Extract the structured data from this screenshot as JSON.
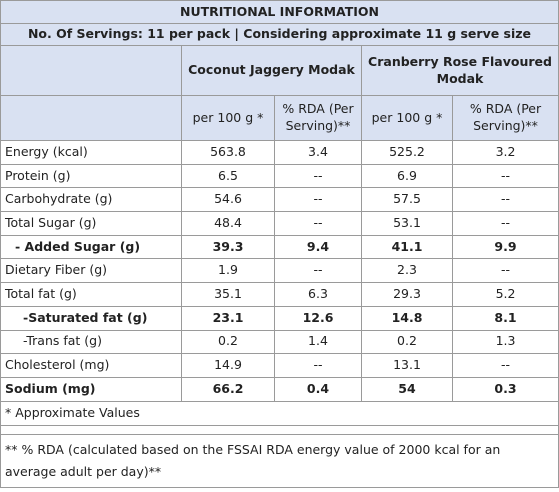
{
  "header": {
    "title": "NUTRITIONAL INFORMATION",
    "subtitle": "No. Of Servings: 11 per pack | Considering approximate 11 g serve size"
  },
  "table": {
    "products": [
      "Coconut Jaggery Modak",
      "Cranberry Rose Flavoured Modak"
    ],
    "columns": [
      "per 100 g *",
      "% RDA (Per Serving)**",
      "per 100 g *",
      "% RDA (Per Serving)**"
    ],
    "rows": [
      {
        "label": "Energy (kcal)",
        "values": [
          563.8,
          3.4,
          525.2,
          3.2
        ]
      },
      {
        "label": "Protein (g)",
        "values": [
          6.5,
          "--",
          6.9,
          "--"
        ]
      },
      {
        "label": "Carbohydrate  (g)",
        "values": [
          54.6,
          "--",
          57.5,
          "--"
        ]
      },
      {
        "label": "Total Sugar (g)",
        "values": [
          48.4,
          "--",
          53.1,
          "--"
        ]
      },
      {
        "label": "- Added Sugar (g)",
        "values": [
          39.3,
          9.4,
          41.1,
          9.9
        ],
        "bold": true
      },
      {
        "label": "Dietary Fiber (g)",
        "values": [
          1.9,
          "--",
          2.3,
          "--"
        ]
      },
      {
        "label": "Total fat (g)",
        "values": [
          35.1,
          6.3,
          29.3,
          5.2
        ]
      },
      {
        "label": "-Saturated fat (g)",
        "values": [
          23.1,
          12.6,
          14.8,
          8.1
        ],
        "bold": true
      },
      {
        "label": "-Trans fat (g)",
        "values": [
          0.2,
          1.4,
          0.2,
          1.3
        ]
      },
      {
        "label": "Cholesterol (mg)",
        "values": [
          14.9,
          "--",
          13.1,
          "--"
        ]
      },
      {
        "label": "Sodium (mg)",
        "values": [
          66.2,
          0.4,
          54,
          0.3
        ],
        "bold": true
      }
    ]
  },
  "footnotes": [
    "* Approximate Values",
    "** % RDA (calculated based on the FSSAI RDA energy value of 2000 kcal for an average adult per day)**"
  ]
}
